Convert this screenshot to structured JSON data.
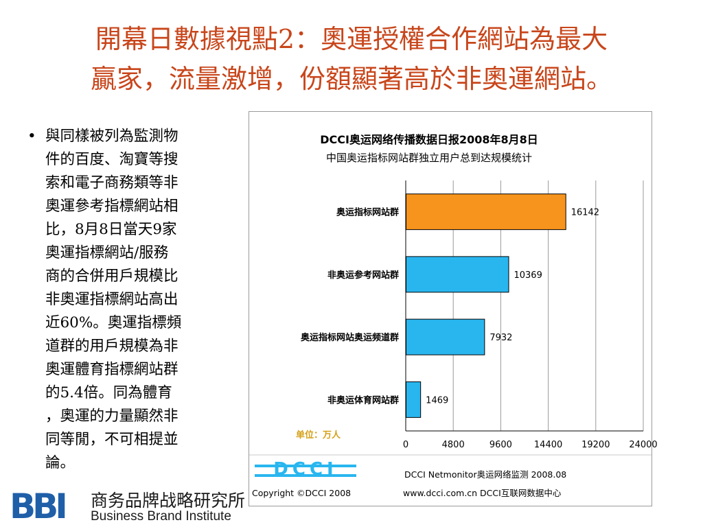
{
  "slide": {
    "title_line1": "開幕日數據視點2：奧運授權合作網站為最大",
    "title_line2": "贏家，流量激增，份額顯著高於非奧運網站。",
    "bullet_symbol": "•",
    "bullet_lines": [
      "與同樣被列為監測物",
      "件的百度、淘寶等搜",
      "索和電子商務類等非",
      "奧運參考指標網站相",
      "比，8月8日當天9家",
      "奧運指標網站/服務",
      "商的合併用戶規模比",
      "非奧運指標網站高出",
      "近60%。奧運指標頻",
      "道群的用戶規模為非",
      "奧運體育指標網站群",
      "的5.4倍。同為體育",
      "，奧運的力量顯然非",
      "同等閒，不可相提並",
      "論。"
    ]
  },
  "chart_data": {
    "type": "bar",
    "orientation": "horizontal",
    "title": "DCCI奥运网络传播数据日报2008年8月8日",
    "subtitle": "中国奥运指标网站群独立用户总到达规模统计",
    "categories": [
      "奥运指标网站群",
      "非奥运参考网站群",
      "奥运指标网站奥运频道群",
      "非奥运体育网站群"
    ],
    "values": [
      16142,
      10369,
      7932,
      1469
    ],
    "colors": [
      "#f7941d",
      "#29b6ef",
      "#29b6ef",
      "#29b6ef"
    ],
    "unit_label": "单位：万人",
    "xlim": [
      0,
      24000
    ],
    "xticks": [
      0,
      4800,
      9600,
      14400,
      19200,
      24000
    ],
    "grid": "vertical-gridlines",
    "footer": {
      "brand": "DCCI",
      "monitor": "DCCI Netmonitor奥运网络监测 2008.08",
      "copyright": "Copyright ©DCCI 2008",
      "site": "www.dcci.com.cn DCCI互联网数据中心"
    }
  },
  "logo": {
    "mark": "BBI",
    "name_cn": "商务品牌战略研究所",
    "name_en": "Business Brand Institute"
  },
  "colors": {
    "title": "#c8461b",
    "orange_bar": "#f7941d",
    "blue_bar": "#29b6ef",
    "unit_label": "#d4a017",
    "logo": "#1f5fa8"
  }
}
